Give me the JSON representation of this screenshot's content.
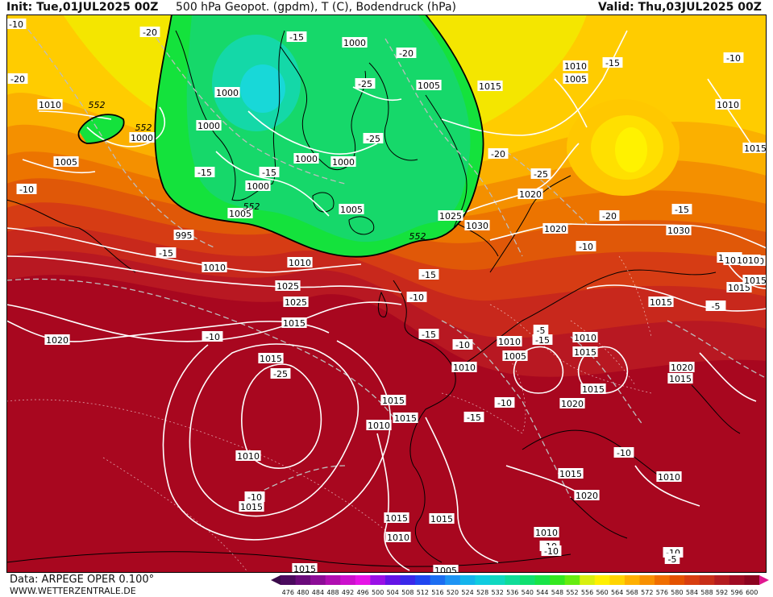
{
  "header": {
    "init": "Init: Tue,01JUL2025 00Z",
    "title": "500 hPa Geopot. (gpdm), T (C), Bodendruck (hPa)",
    "valid": "Valid: Thu,03JUL2025 00Z"
  },
  "footer": {
    "data_source": "Data: ARPEGE OPER 0.100°",
    "website": "WWW.WETTERZENTRALE.DE"
  },
  "legend": {
    "values": [
      "476",
      "480",
      "484",
      "488",
      "492",
      "496",
      "500",
      "504",
      "508",
      "512",
      "516",
      "520",
      "524",
      "528",
      "532",
      "536",
      "540",
      "544",
      "548",
      "552",
      "556",
      "560",
      "564",
      "568",
      "572",
      "576",
      "580",
      "584",
      "588",
      "592",
      "596",
      "600"
    ],
    "colors": [
      "#4b0a5e",
      "#6a0a7a",
      "#8c0c96",
      "#b00eb0",
      "#cc10cc",
      "#e614e6",
      "#9a10e6",
      "#6414e6",
      "#3a28ea",
      "#2046f0",
      "#1c6ef2",
      "#1e94f4",
      "#14b4ec",
      "#10cce0",
      "#10d8c0",
      "#10dc98",
      "#10e070",
      "#18e448",
      "#34e820",
      "#66ec10",
      "#d8f010",
      "#fff000",
      "#ffd400",
      "#ffb000",
      "#f89000",
      "#f06e00",
      "#e45200",
      "#d83e10",
      "#c82e18",
      "#b41c20",
      "#a00c24",
      "#8c0420"
    ],
    "arrow_left_color": "#3a0a4a",
    "arrow_right_color": "#e01890"
  },
  "map": {
    "geopotential_labels": [
      {
        "text": "552"
      },
      {
        "text": "552"
      },
      {
        "text": "552"
      },
      {
        "text": "552"
      }
    ],
    "pressure_labels": [
      {
        "text": "1000"
      },
      {
        "text": "1005"
      },
      {
        "text": "1000"
      },
      {
        "text": "1000"
      },
      {
        "text": "1010"
      },
      {
        "text": "1000"
      },
      {
        "text": "1005"
      },
      {
        "text": "1000"
      },
      {
        "text": "1000"
      },
      {
        "text": "1000"
      },
      {
        "text": "1005"
      },
      {
        "text": "1005"
      },
      {
        "text": "995"
      },
      {
        "text": "1010"
      },
      {
        "text": "1010"
      },
      {
        "text": "1005"
      },
      {
        "text": "1010"
      },
      {
        "text": "1015"
      },
      {
        "text": "1020"
      },
      {
        "text": "1025"
      },
      {
        "text": "1030"
      },
      {
        "text": "1020"
      },
      {
        "text": "1030"
      },
      {
        "text": "1025"
      },
      {
        "text": "1025"
      },
      {
        "text": "1020"
      },
      {
        "text": "1015"
      },
      {
        "text": "1015"
      },
      {
        "text": "1010"
      },
      {
        "text": "1015"
      },
      {
        "text": "1015"
      },
      {
        "text": "1015"
      },
      {
        "text": "1010"
      },
      {
        "text": "1010"
      },
      {
        "text": "1010"
      },
      {
        "text": "1005"
      },
      {
        "text": "1010"
      },
      {
        "text": "1015"
      },
      {
        "text": "1020"
      },
      {
        "text": "1015"
      },
      {
        "text": "1020"
      },
      {
        "text": "1015"
      },
      {
        "text": "1015"
      },
      {
        "text": "1015"
      },
      {
        "text": "1015"
      },
      {
        "text": "1010"
      },
      {
        "text": "1015"
      },
      {
        "text": "1020"
      },
      {
        "text": "1015"
      },
      {
        "text": "1010"
      },
      {
        "text": "1015"
      },
      {
        "text": "1010"
      },
      {
        "text": "1015"
      },
      {
        "text": "1005"
      },
      {
        "text": "1015"
      },
      {
        "text": "1010"
      },
      {
        "text": "1015"
      },
      {
        "text": "1010"
      },
      {
        "text": "1015"
      },
      {
        "text": "1010"
      }
    ],
    "temperature_labels": [
      {
        "text": "-10"
      },
      {
        "text": "-20"
      },
      {
        "text": "-15"
      },
      {
        "text": "-20"
      },
      {
        "text": "-25"
      },
      {
        "text": "-20"
      },
      {
        "text": "-25"
      },
      {
        "text": "-15"
      },
      {
        "text": "-15"
      },
      {
        "text": "-10"
      },
      {
        "text": "-15"
      },
      {
        "text": "-20"
      },
      {
        "text": "-25"
      },
      {
        "text": "-20"
      },
      {
        "text": "-15"
      },
      {
        "text": "-15"
      },
      {
        "text": "-10"
      },
      {
        "text": "-15"
      },
      {
        "text": "-10"
      },
      {
        "text": "-15"
      },
      {
        "text": "-10"
      },
      {
        "text": "-25"
      },
      {
        "text": "-20"
      },
      {
        "text": "-15"
      },
      {
        "text": "-10"
      },
      {
        "text": "-15"
      },
      {
        "text": "-10"
      },
      {
        "text": "-10"
      },
      {
        "text": "-10"
      },
      {
        "text": "-10"
      },
      {
        "text": "-10"
      },
      {
        "text": "-10"
      },
      {
        "text": "-5"
      },
      {
        "text": "-5"
      },
      {
        "text": "-5"
      },
      {
        "text": "-10"
      },
      {
        "text": "-10"
      },
      {
        "text": "-15"
      },
      {
        "text": "-10"
      },
      {
        "text": "-10"
      }
    ]
  }
}
